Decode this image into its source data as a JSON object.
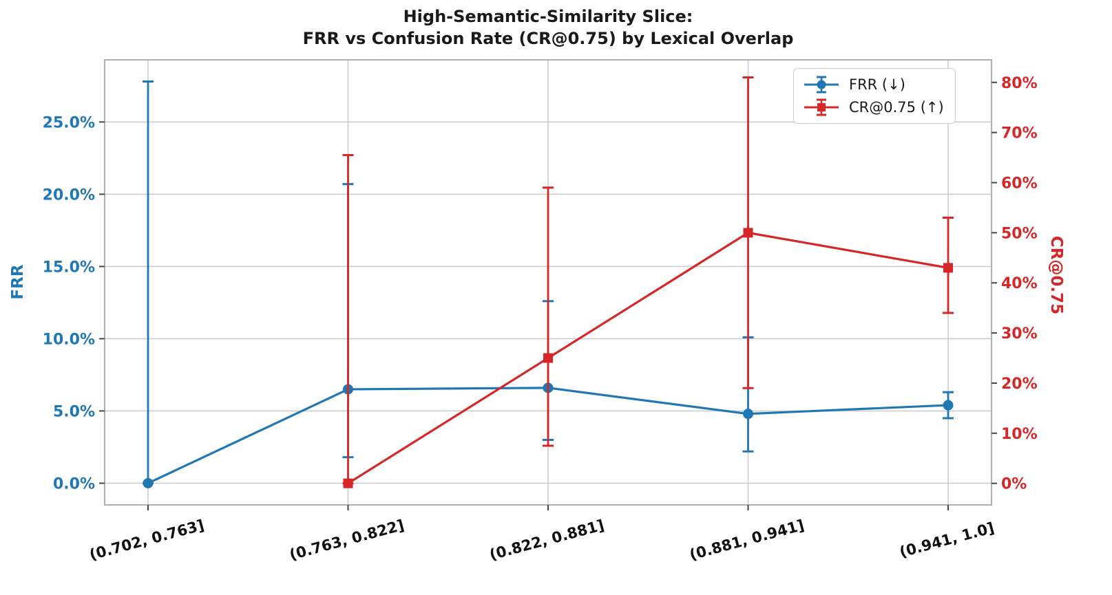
{
  "chart_data": {
    "type": "line",
    "title": "High-Semantic-Similarity Slice:\nFRR vs Confusion Rate (CR@0.75) by Lexical Overlap",
    "title_line1": "High-Semantic-Similarity Slice:",
    "title_line2": "FRR vs Confusion Rate (CR@0.75) by Lexical Overlap",
    "categories": [
      "(0.702, 0.763]",
      "(0.763, 0.822]",
      "(0.822, 0.881]",
      "(0.881, 0.941]",
      "(0.941, 1.0]"
    ],
    "x_axis_note": "Lexical Overlap bins",
    "grid": true,
    "left_axis": {
      "label": "FRR",
      "color": "#1f77b4",
      "tick_labels": [
        "0.0%",
        "5.0%",
        "10.0%",
        "15.0%",
        "20.0%",
        "25.0%"
      ],
      "tick_values": [
        0,
        5,
        10,
        15,
        20,
        25
      ],
      "range": [
        -1.5,
        29.3
      ]
    },
    "right_axis": {
      "label": "CR@0.75",
      "color": "#d62728",
      "tick_labels": [
        "0%",
        "10%",
        "20%",
        "30%",
        "40%",
        "50%",
        "60%",
        "70%",
        "80%"
      ],
      "tick_values": [
        0,
        10,
        20,
        30,
        40,
        50,
        60,
        70,
        80
      ],
      "range": [
        -4.3,
        84.5
      ]
    },
    "series": [
      {
        "name": "FRR (↓)",
        "axis": "left",
        "color": "#1f77b4",
        "marker": "circle",
        "values": [
          0.0,
          6.5,
          6.6,
          4.8,
          5.4
        ],
        "err_low_abs": [
          0.0,
          1.8,
          3.0,
          2.2,
          4.5
        ],
        "err_high_abs": [
          27.8,
          20.7,
          12.6,
          10.1,
          6.3
        ]
      },
      {
        "name": "CR@0.75 (↑)",
        "axis": "right",
        "color": "#d62728",
        "marker": "square",
        "values": [
          null,
          0.0,
          25.0,
          50.0,
          43.0
        ],
        "err_low_abs": [
          null,
          0.0,
          7.5,
          19.0,
          34.0
        ],
        "err_high_abs": [
          null,
          65.5,
          59.0,
          81.0,
          53.0
        ]
      }
    ],
    "legend": {
      "position": "upper right",
      "items": [
        "FRR (↓)",
        "CR@0.75 (↑)"
      ]
    }
  }
}
